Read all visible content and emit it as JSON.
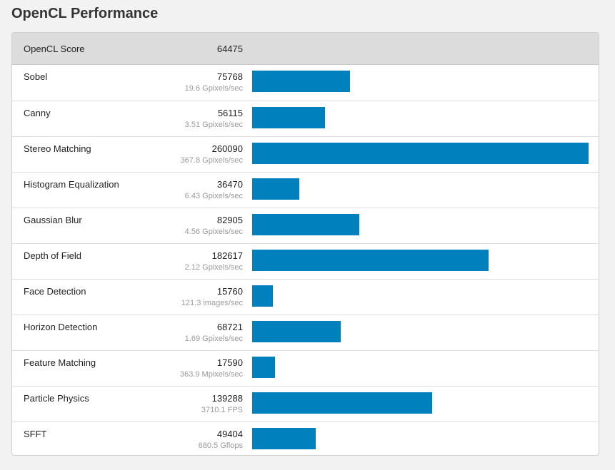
{
  "page": {
    "title": "OpenCL Performance"
  },
  "summary": {
    "label": "OpenCL Score",
    "score": "64475"
  },
  "colors": {
    "bar": "#0081bd",
    "header_bg": "#dcdcdc",
    "rate_text": "#9a9a9a"
  },
  "bar_max_score": 260090,
  "rows": [
    {
      "name": "Sobel",
      "score": "75768",
      "rate": "19.6 Gpixels/sec",
      "value": 75768
    },
    {
      "name": "Canny",
      "score": "56115",
      "rate": "3.51 Gpixels/sec",
      "value": 56115
    },
    {
      "name": "Stereo Matching",
      "score": "260090",
      "rate": "367.8 Gpixels/sec",
      "value": 260090
    },
    {
      "name": "Histogram Equalization",
      "score": "36470",
      "rate": "6.43 Gpixels/sec",
      "value": 36470
    },
    {
      "name": "Gaussian Blur",
      "score": "82905",
      "rate": "4.56 Gpixels/sec",
      "value": 82905
    },
    {
      "name": "Depth of Field",
      "score": "182617",
      "rate": "2.12 Gpixels/sec",
      "value": 182617
    },
    {
      "name": "Face Detection",
      "score": "15760",
      "rate": "121.3 images/sec",
      "value": 15760
    },
    {
      "name": "Horizon Detection",
      "score": "68721",
      "rate": "1.69 Gpixels/sec",
      "value": 68721
    },
    {
      "name": "Feature Matching",
      "score": "17590",
      "rate": "363.9 Mpixels/sec",
      "value": 17590
    },
    {
      "name": "Particle Physics",
      "score": "139288",
      "rate": "3710.1 FPS",
      "value": 139288
    },
    {
      "name": "SFFT",
      "score": "49404",
      "rate": "680.5 Gflops",
      "value": 49404
    }
  ]
}
